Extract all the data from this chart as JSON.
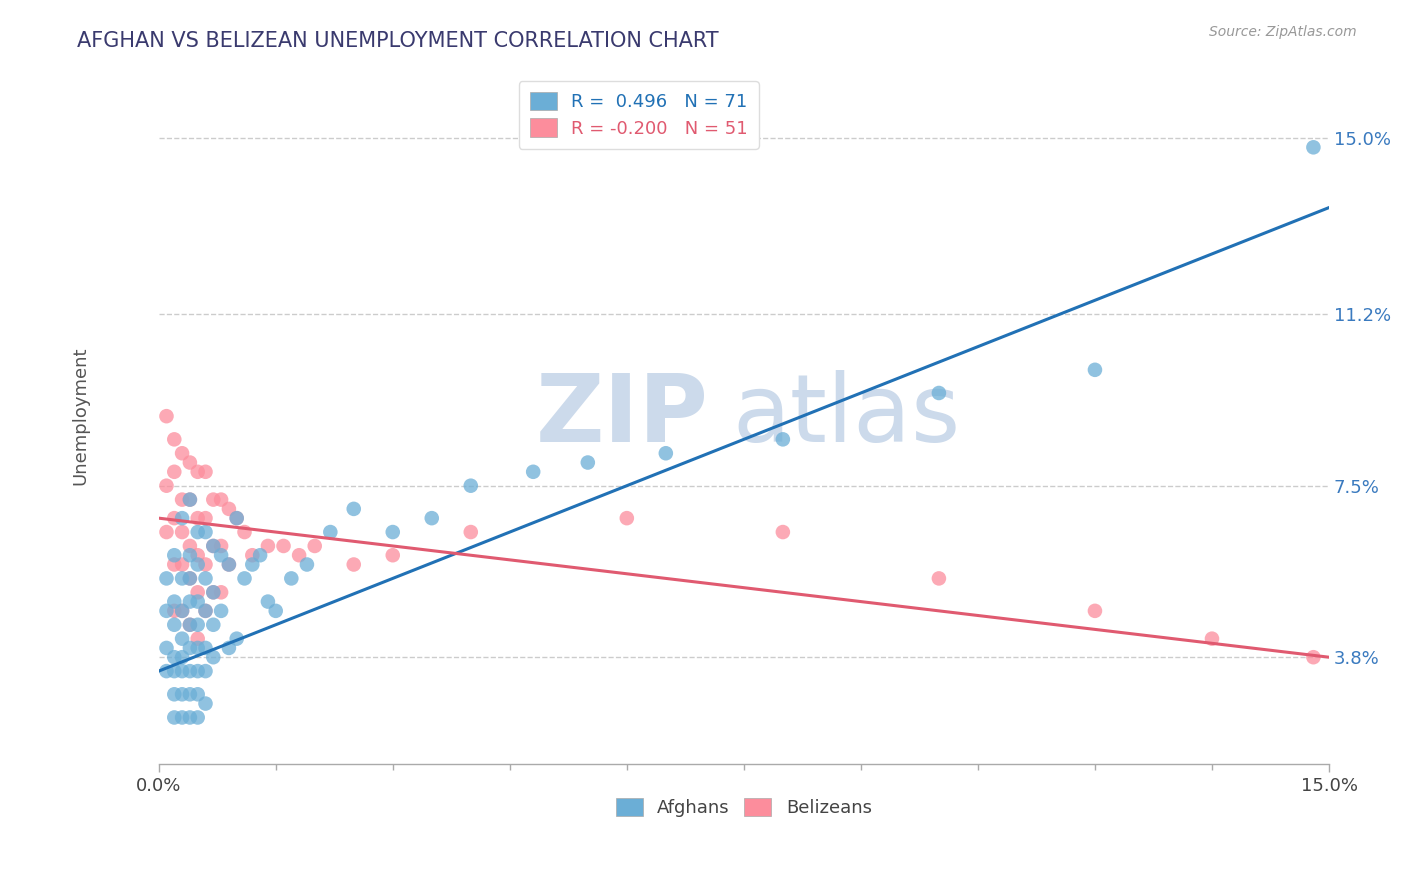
{
  "title": "AFGHAN VS BELIZEAN UNEMPLOYMENT CORRELATION CHART",
  "source_text": "Source: ZipAtlas.com",
  "ylabel": "Unemployment",
  "xlim": [
    0,
    0.15
  ],
  "ylim": [
    0.015,
    0.165
  ],
  "yticks": [
    0.038,
    0.075,
    0.112,
    0.15
  ],
  "ytick_labels": [
    "3.8%",
    "7.5%",
    "11.2%",
    "15.0%"
  ],
  "xticks": [
    0.0,
    0.15
  ],
  "xtick_labels": [
    "0.0%",
    "15.0%"
  ],
  "afghan_R": 0.496,
  "afghan_N": 71,
  "belizean_R": -0.2,
  "belizean_N": 51,
  "afghan_color": "#6baed6",
  "belizean_color": "#fc8d9c",
  "afghan_line_color": "#2171b5",
  "belizean_line_color": "#e05a70",
  "background_color": "#ffffff",
  "title_color": "#3a3a6e",
  "watermark_zip": "ZIP",
  "watermark_atlas": "atlas",
  "watermark_color_zip": "#c8d8ea",
  "watermark_color_atlas": "#c8d8ea",
  "afghan_line_x0": 0.0,
  "afghan_line_y0": 0.035,
  "afghan_line_x1": 0.15,
  "afghan_line_y1": 0.135,
  "belizean_line_x0": 0.0,
  "belizean_line_y0": 0.068,
  "belizean_line_x1": 0.15,
  "belizean_line_y1": 0.038,
  "afghan_x": [
    0.001,
    0.001,
    0.001,
    0.001,
    0.002,
    0.002,
    0.002,
    0.002,
    0.002,
    0.002,
    0.002,
    0.003,
    0.003,
    0.003,
    0.003,
    0.003,
    0.003,
    0.003,
    0.003,
    0.004,
    0.004,
    0.004,
    0.004,
    0.004,
    0.004,
    0.004,
    0.004,
    0.004,
    0.005,
    0.005,
    0.005,
    0.005,
    0.005,
    0.005,
    0.005,
    0.005,
    0.006,
    0.006,
    0.006,
    0.006,
    0.006,
    0.006,
    0.007,
    0.007,
    0.007,
    0.007,
    0.008,
    0.008,
    0.009,
    0.009,
    0.01,
    0.01,
    0.011,
    0.012,
    0.013,
    0.014,
    0.015,
    0.017,
    0.019,
    0.022,
    0.025,
    0.03,
    0.035,
    0.04,
    0.048,
    0.055,
    0.065,
    0.08,
    0.1,
    0.12,
    0.148
  ],
  "afghan_y": [
    0.055,
    0.048,
    0.04,
    0.035,
    0.06,
    0.05,
    0.045,
    0.038,
    0.035,
    0.03,
    0.025,
    0.068,
    0.055,
    0.048,
    0.042,
    0.038,
    0.035,
    0.03,
    0.025,
    0.072,
    0.06,
    0.055,
    0.05,
    0.045,
    0.04,
    0.035,
    0.03,
    0.025,
    0.065,
    0.058,
    0.05,
    0.045,
    0.04,
    0.035,
    0.03,
    0.025,
    0.065,
    0.055,
    0.048,
    0.04,
    0.035,
    0.028,
    0.062,
    0.052,
    0.045,
    0.038,
    0.06,
    0.048,
    0.058,
    0.04,
    0.068,
    0.042,
    0.055,
    0.058,
    0.06,
    0.05,
    0.048,
    0.055,
    0.058,
    0.065,
    0.07,
    0.065,
    0.068,
    0.075,
    0.078,
    0.08,
    0.082,
    0.085,
    0.095,
    0.1,
    0.148
  ],
  "belizean_x": [
    0.001,
    0.001,
    0.001,
    0.002,
    0.002,
    0.002,
    0.002,
    0.002,
    0.003,
    0.003,
    0.003,
    0.003,
    0.003,
    0.004,
    0.004,
    0.004,
    0.004,
    0.004,
    0.005,
    0.005,
    0.005,
    0.005,
    0.005,
    0.006,
    0.006,
    0.006,
    0.006,
    0.007,
    0.007,
    0.007,
    0.008,
    0.008,
    0.008,
    0.009,
    0.009,
    0.01,
    0.011,
    0.012,
    0.014,
    0.016,
    0.018,
    0.02,
    0.025,
    0.03,
    0.04,
    0.06,
    0.08,
    0.1,
    0.12,
    0.135,
    0.148
  ],
  "belizean_y": [
    0.09,
    0.075,
    0.065,
    0.085,
    0.078,
    0.068,
    0.058,
    0.048,
    0.082,
    0.072,
    0.065,
    0.058,
    0.048,
    0.08,
    0.072,
    0.062,
    0.055,
    0.045,
    0.078,
    0.068,
    0.06,
    0.052,
    0.042,
    0.078,
    0.068,
    0.058,
    0.048,
    0.072,
    0.062,
    0.052,
    0.072,
    0.062,
    0.052,
    0.07,
    0.058,
    0.068,
    0.065,
    0.06,
    0.062,
    0.062,
    0.06,
    0.062,
    0.058,
    0.06,
    0.065,
    0.068,
    0.065,
    0.055,
    0.048,
    0.042,
    0.038
  ]
}
